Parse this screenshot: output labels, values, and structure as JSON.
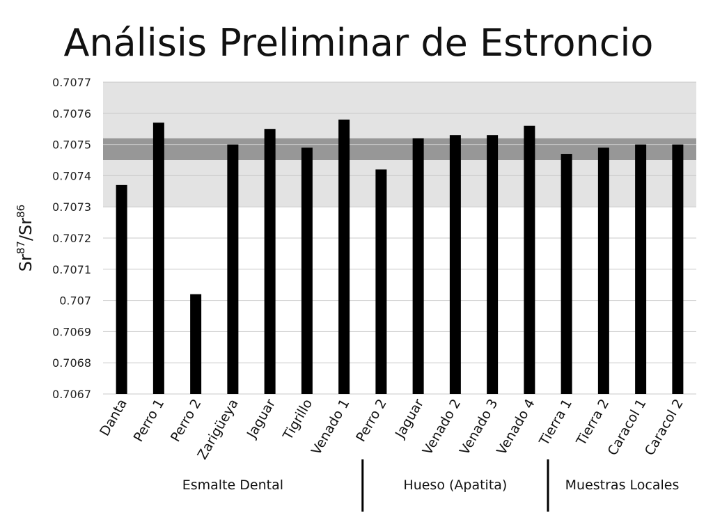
{
  "chart_data": {
    "type": "bar",
    "title": "Análisis Preliminar de Estroncio",
    "ylabel": {
      "base": "Sr",
      "sup1": "87",
      "sep": "/Sr",
      "sup2": "86"
    },
    "xlabel": "",
    "ylim": [
      0.7067,
      0.7077
    ],
    "yticks": [
      "0.7067",
      "0.7068",
      "0.7069",
      "0.707",
      "0.7071",
      "0.7072",
      "0.7073",
      "0.7074",
      "0.7075",
      "0.7076",
      "0.7077"
    ],
    "grid": true,
    "categories": [
      "Danta",
      "Perro 1",
      "Perro 2",
      "Zarigüeya",
      "Jaguar",
      "Tigrillo",
      "Venado 1",
      "Perro 2",
      "Jaguar",
      "Venado 2",
      "Venado 3",
      "Venado 4",
      "Tierra 1",
      "Tierra 2",
      "Caracol 1",
      "Caracol 2"
    ],
    "values": [
      0.70737,
      0.70757,
      0.70702,
      0.7075,
      0.70755,
      0.70749,
      0.70758,
      0.70742,
      0.70752,
      0.70753,
      0.70753,
      0.70756,
      0.70747,
      0.70749,
      0.7075,
      0.7075
    ],
    "bands": [
      {
        "range": [
          0.7073,
          0.7077
        ],
        "color": "#e3e3e3"
      },
      {
        "range": [
          0.70745,
          0.70752
        ],
        "color": "rgba(90,90,90,0.55)"
      }
    ],
    "groups": [
      {
        "label": "Esmalte Dental",
        "start": 0,
        "end": 6
      },
      {
        "label": "Hueso (Apatita)",
        "start": 7,
        "end": 11
      },
      {
        "label": "Muestras Locales",
        "start": 12,
        "end": 15
      }
    ],
    "bar_color": "#000000"
  }
}
